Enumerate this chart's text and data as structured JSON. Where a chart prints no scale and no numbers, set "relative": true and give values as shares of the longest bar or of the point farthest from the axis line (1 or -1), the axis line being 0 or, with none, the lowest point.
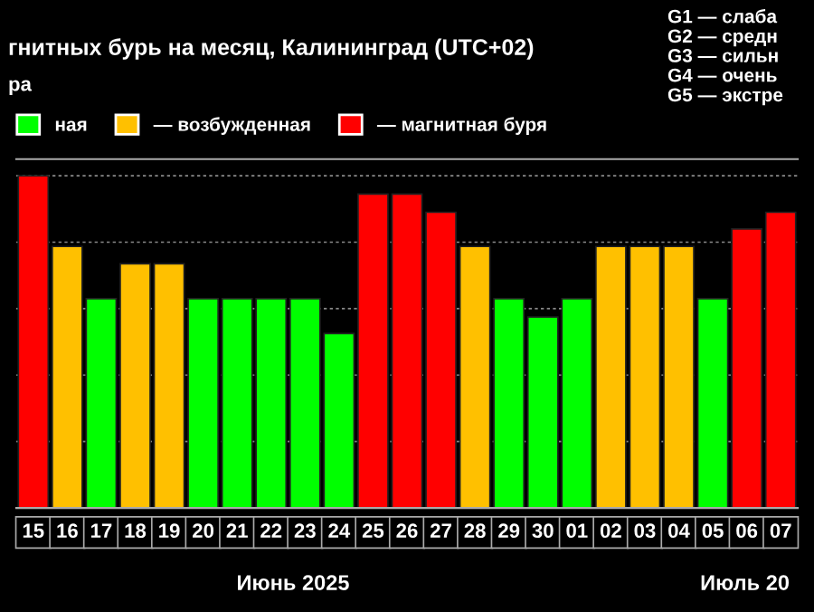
{
  "chart_data": {
    "type": "bar",
    "title": "гнитных бурь на месяц, Калининград (UTC+02)",
    "subtitle": "ра",
    "categories": [
      "15",
      "16",
      "17",
      "18",
      "19",
      "20",
      "21",
      "22",
      "23",
      "24",
      "25",
      "26",
      "27",
      "28",
      "29",
      "30",
      "01",
      "02",
      "03",
      "04",
      "05",
      "06",
      "07"
    ],
    "relative": true,
    "grid": "y",
    "legend": "top left",
    "series": [
      {
        "name": "ная",
        "color": "#00ff00",
        "values": [
          null,
          null,
          0.63,
          null,
          null,
          0.63,
          0.63,
          0.63,
          0.63,
          0.525,
          null,
          null,
          null,
          null,
          0.63,
          0.575,
          0.63,
          null,
          null,
          null,
          0.63,
          null,
          null
        ]
      },
      {
        "name": "— возбужденная",
        "color": "#ffc000",
        "values": [
          null,
          0.787,
          null,
          0.735,
          0.735,
          null,
          null,
          null,
          null,
          null,
          null,
          null,
          null,
          0.787,
          null,
          null,
          null,
          0.787,
          0.787,
          0.787,
          null,
          null,
          null
        ]
      },
      {
        "name": "— магнитная буря",
        "color": "#ff0000",
        "values": [
          1.0,
          null,
          null,
          null,
          null,
          null,
          null,
          null,
          null,
          null,
          0.945,
          0.945,
          0.89,
          null,
          null,
          null,
          null,
          null,
          null,
          null,
          null,
          0.84,
          0.89
        ]
      }
    ],
    "annotations": [
      "G1 — слаба\nG2 — средн\nG3 — сильн\nG4 — очень\nG5 — экстре",
      "Июнь 2025",
      "Июль 20"
    ]
  }
}
